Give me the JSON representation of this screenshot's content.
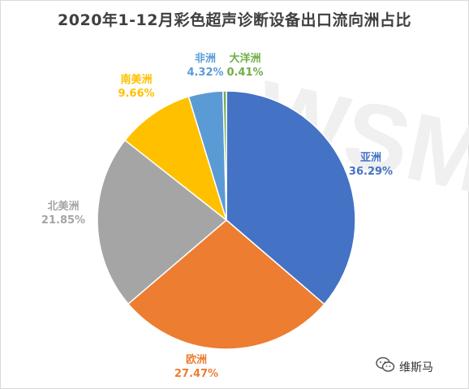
{
  "chart_data": {
    "type": "pie",
    "title": "2020年1-12月彩色超声诊断设备出口流向洲占比",
    "slices": [
      {
        "name": "亚洲",
        "value": 36.29,
        "label": "36.29%",
        "color": "#4472C4"
      },
      {
        "name": "欧洲",
        "value": 27.47,
        "label": "27.47%",
        "color": "#ED7D31"
      },
      {
        "name": "北美洲",
        "value": 21.85,
        "label": "21.85%",
        "color": "#A5A5A5"
      },
      {
        "name": "南美洲",
        "value": 9.66,
        "label": "9.66%",
        "color": "#FFC000"
      },
      {
        "name": "非洲",
        "value": 4.32,
        "label": "4.32%",
        "color": "#5B9BD5"
      },
      {
        "name": "大洋洲",
        "value": 0.41,
        "label": "0.41%",
        "color": "#70AD47"
      }
    ],
    "start_angle": "12 o'clock",
    "direction": "clockwise",
    "legend": "none"
  },
  "background_watermark": "WSM",
  "source_badge": {
    "icon": "wechat-icon",
    "text": "维斯马"
  }
}
